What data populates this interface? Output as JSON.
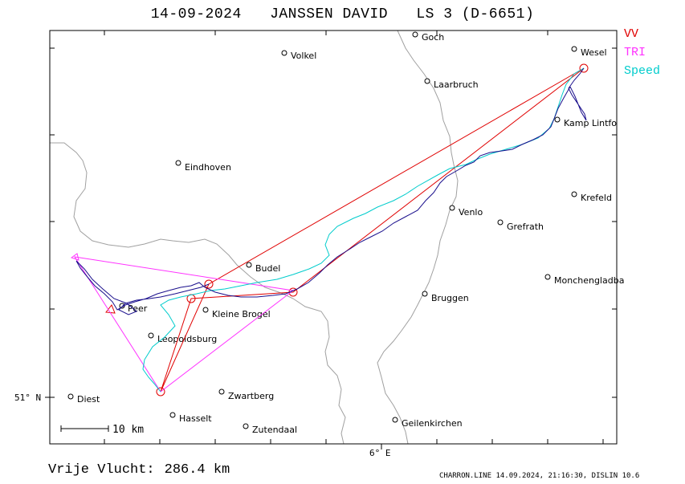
{
  "header": {
    "date": "14-09-2024",
    "pilot": "JANSSEN DAVID",
    "glider": "LS 3 (D-6651)"
  },
  "legend": {
    "vv": "VV",
    "tri": "TRI",
    "speed": "Speed"
  },
  "colors": {
    "vv": "#e00000",
    "tri": "#ff33ff",
    "speed": "#00cccc",
    "track": "#1a0f8c",
    "border": "#a0a0a0"
  },
  "footer": {
    "distance_label": "Vrije Vlucht:",
    "distance_value": "286.4 km",
    "credit": "CHARRON.LINE 14.09.2024, 21:16:30, DISLIN 10.6"
  },
  "axes": {
    "lat_label": "51° N",
    "lon_label": "6° E"
  },
  "scale": {
    "label": "10 km"
  },
  "places": [
    {
      "name": "Goch",
      "id": "goch"
    },
    {
      "name": "Wesel",
      "id": "wesel"
    },
    {
      "name": "Volkel",
      "id": "volkel"
    },
    {
      "name": "Laarbruch",
      "id": "laarbruch"
    },
    {
      "name": "Kamp Lintfo",
      "id": "kamp-lintfort"
    },
    {
      "name": "Eindhoven",
      "id": "eindhoven"
    },
    {
      "name": "Krefeld",
      "id": "krefeld"
    },
    {
      "name": "Venlo",
      "id": "venlo"
    },
    {
      "name": "Grefrath",
      "id": "grefrath"
    },
    {
      "name": "Budel",
      "id": "budel"
    },
    {
      "name": "Monchengladba",
      "id": "monchengladbach"
    },
    {
      "name": "Bruggen",
      "id": "bruggen"
    },
    {
      "name": "Kleine Brogel",
      "id": "kleine-brogel"
    },
    {
      "name": "Peer",
      "id": "peer"
    },
    {
      "name": "Leopoldsburg",
      "id": "leopoldsburg"
    },
    {
      "name": "Diest",
      "id": "diest"
    },
    {
      "name": "Zwartberg",
      "id": "zwartberg"
    },
    {
      "name": "Hasselt",
      "id": "hasselt"
    },
    {
      "name": "Zutendaal",
      "id": "zutendaal"
    },
    {
      "name": "Geilenkirchen",
      "id": "geilenkirchen"
    }
  ]
}
